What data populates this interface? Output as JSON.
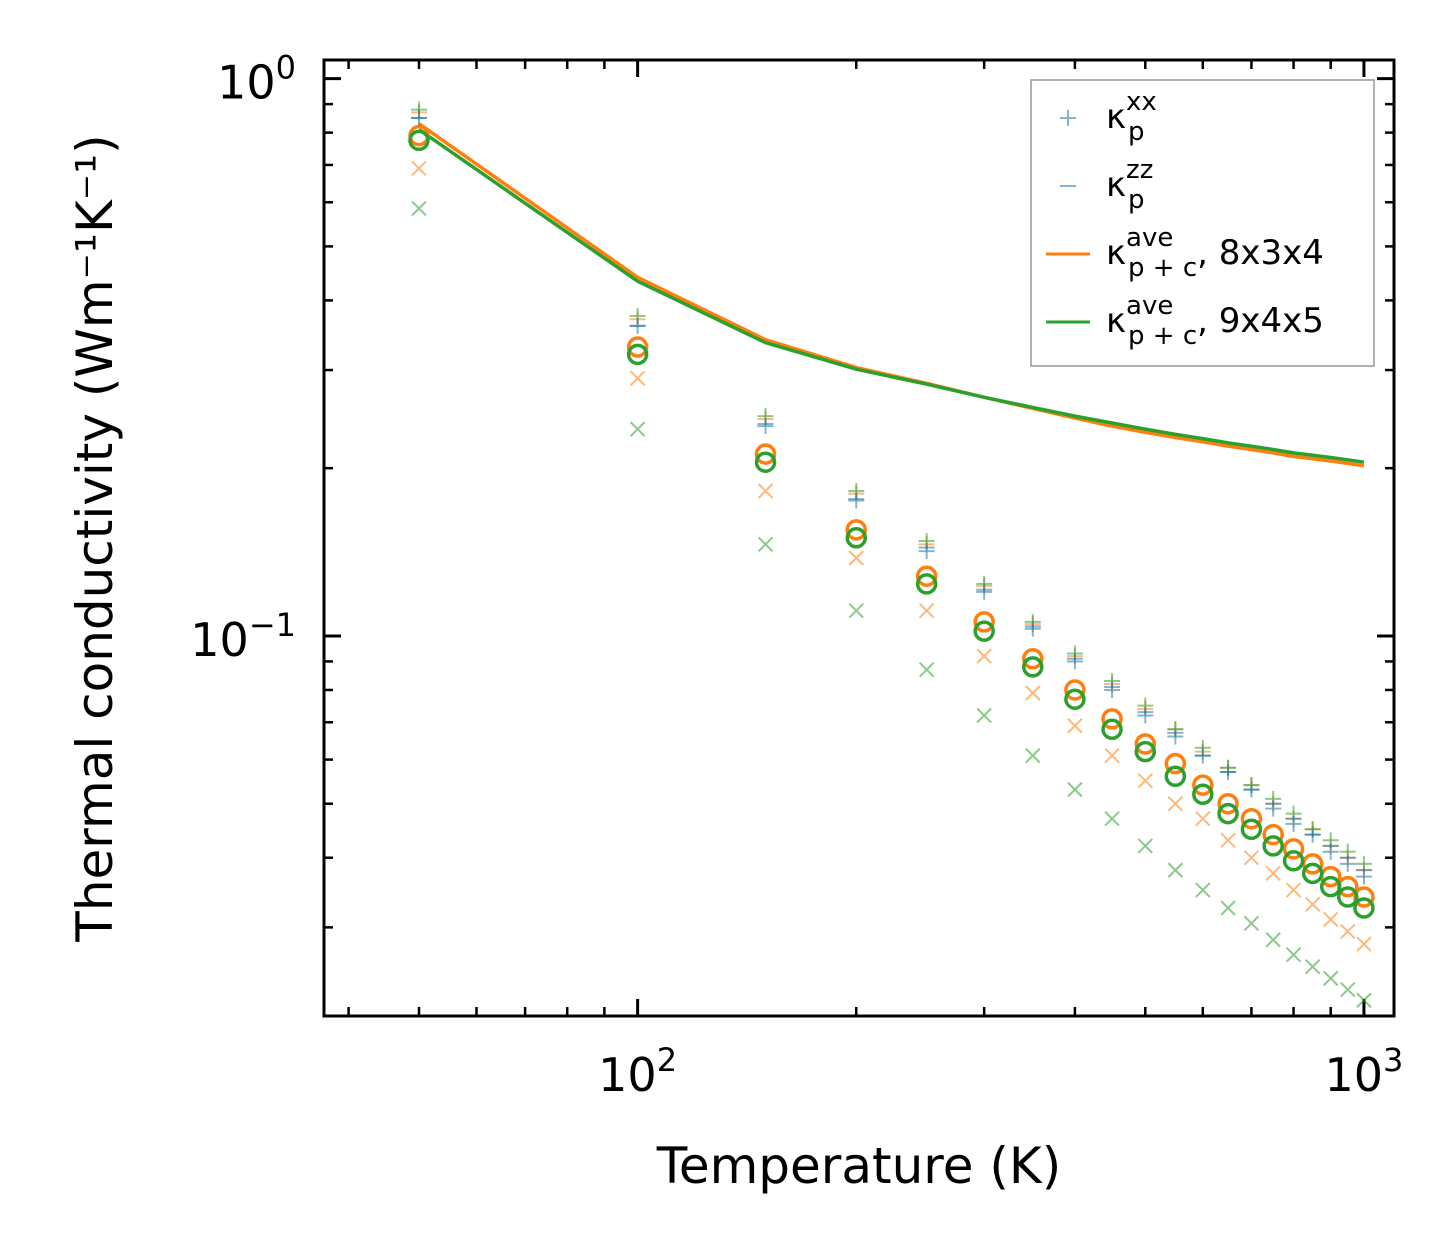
{
  "chart_data": {
    "type": "scatter",
    "xscale": "log",
    "yscale": "log",
    "xlim": [
      37,
      1100
    ],
    "ylim": [
      0.0208,
      1.08
    ],
    "xlabel": "Temperature (K)",
    "ylabel": "Thermal conductivity (Wm⁻¹K⁻¹)",
    "x_ticks": [
      {
        "value": 100,
        "base": "10",
        "exp": "2"
      },
      {
        "value": 1000,
        "base": "10",
        "exp": "3"
      }
    ],
    "y_ticks": [
      {
        "value": 1,
        "base": "10",
        "exp": "0"
      },
      {
        "value": 0.1,
        "base": "10",
        "exp": "−1"
      }
    ],
    "x": [
      50,
      100,
      150,
      200,
      250,
      300,
      350,
      400,
      450,
      500,
      550,
      600,
      650,
      700,
      750,
      800,
      850,
      900,
      950,
      1000
    ],
    "legend": [
      {
        "key": "kxx",
        "main": "κ",
        "sup": "xx",
        "sub": "p",
        "suffix": "",
        "marker": "+",
        "color": "#1f77b4"
      },
      {
        "key": "kzz",
        "main": "κ",
        "sup": "zz",
        "sub": "p",
        "suffix": "",
        "marker": "_",
        "color": "#1f77b4"
      },
      {
        "key": "k834",
        "main": "κ",
        "sup": "ave",
        "sub": "p + c",
        "suffix": ", 8x3x4",
        "marker": "line",
        "color": "#ff7f0e"
      },
      {
        "key": "k945",
        "main": "κ",
        "sup": "ave",
        "sub": "p + c",
        "suffix": ", 9x4x5",
        "marker": "line",
        "color": "#2ca02c"
      }
    ],
    "series": [
      {
        "name": "8x3x4 κ_p+c ave",
        "color": "#ff7f0e",
        "style": "line",
        "values": [
          0.83,
          0.44,
          0.34,
          0.303,
          0.284,
          0.268,
          0.256,
          0.246,
          0.238,
          0.232,
          0.227,
          0.223,
          0.219,
          0.216,
          0.213,
          0.21,
          0.208,
          0.206,
          0.204,
          0.202
        ]
      },
      {
        "name": "9x4x5 κ_p+c ave",
        "color": "#2ca02c",
        "style": "line",
        "values": [
          0.81,
          0.433,
          0.336,
          0.301,
          0.283,
          0.268,
          0.257,
          0.248,
          0.241,
          0.235,
          0.23,
          0.226,
          0.222,
          0.219,
          0.216,
          0.213,
          0.211,
          0.209,
          0.207,
          0.205
        ]
      },
      {
        "name": "8x3x4 κ_p xx",
        "color": "#ff7f0e",
        "style": "plus",
        "values": [
          0.87,
          0.37,
          0.245,
          0.18,
          0.146,
          0.123,
          0.105,
          0.092,
          0.082,
          0.074,
          0.068,
          0.062,
          0.058,
          0.054,
          0.05,
          0.047,
          0.045,
          0.042,
          0.04,
          0.038
        ]
      },
      {
        "name": "8x3x4 κ_p zz",
        "color": "#ff7f0e",
        "style": "x",
        "values": [
          0.69,
          0.29,
          0.182,
          0.138,
          0.111,
          0.092,
          0.079,
          0.069,
          0.061,
          0.055,
          0.05,
          0.047,
          0.043,
          0.04,
          0.0375,
          0.035,
          0.033,
          0.031,
          0.0295,
          0.028
        ]
      },
      {
        "name": "8x3x4 κ_p ave",
        "color": "#ff7f0e",
        "style": "circle",
        "values": [
          0.79,
          0.33,
          0.212,
          0.155,
          0.128,
          0.106,
          0.091,
          0.08,
          0.071,
          0.064,
          0.059,
          0.054,
          0.05,
          0.047,
          0.044,
          0.0415,
          0.039,
          0.037,
          0.0355,
          0.034
        ]
      },
      {
        "name": "9x4x5 κ_p xx",
        "color": "#2ca02c",
        "style": "plus",
        "values": [
          0.88,
          0.375,
          0.248,
          0.182,
          0.148,
          0.124,
          0.106,
          0.093,
          0.083,
          0.075,
          0.068,
          0.063,
          0.058,
          0.054,
          0.051,
          0.048,
          0.045,
          0.043,
          0.041,
          0.039
        ]
      },
      {
        "name": "9x4x5 κ_p zz",
        "color": "#2ca02c",
        "style": "x",
        "values": [
          0.585,
          0.235,
          0.146,
          0.111,
          0.087,
          0.072,
          0.061,
          0.053,
          0.047,
          0.042,
          0.038,
          0.035,
          0.0325,
          0.0305,
          0.0285,
          0.0268,
          0.0255,
          0.0243,
          0.0232,
          0.0222
        ]
      },
      {
        "name": "9x4x5 κ_p ave",
        "color": "#2ca02c",
        "style": "circle",
        "values": [
          0.775,
          0.32,
          0.205,
          0.15,
          0.124,
          0.102,
          0.088,
          0.077,
          0.068,
          0.062,
          0.056,
          0.052,
          0.048,
          0.045,
          0.042,
          0.0395,
          0.0375,
          0.0355,
          0.034,
          0.0325
        ]
      },
      {
        "name": "κ_p xx (blue)",
        "color": "#1f77b4",
        "style": "plus",
        "values": [
          0.85,
          0.36,
          0.238,
          0.175,
          0.142,
          0.12,
          0.103,
          0.09,
          0.08,
          0.072,
          0.066,
          0.061,
          0.057,
          0.053,
          0.049,
          0.046,
          0.044,
          0.041,
          0.039,
          0.037
        ]
      },
      {
        "name": "κ_p zz (blue)",
        "color": "#1f77b4",
        "style": "dash",
        "values": [
          0.85,
          0.36,
          0.24,
          0.176,
          0.144,
          0.121,
          0.104,
          0.091,
          0.081,
          0.073,
          0.067,
          0.061,
          0.057,
          0.053,
          0.05,
          0.047,
          0.044,
          0.042,
          0.04,
          0.038
        ]
      }
    ]
  }
}
